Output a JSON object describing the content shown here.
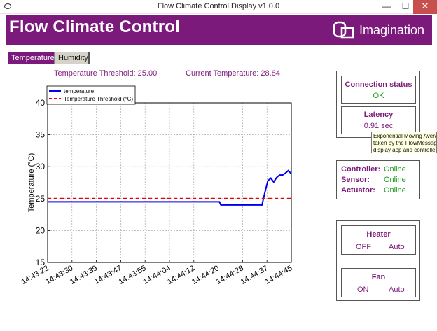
{
  "window": {
    "title": "Flow Climate Control Display v1.0.0",
    "minimize": "—",
    "maximize": "☐",
    "close": "✕"
  },
  "banner": {
    "heading": "Flow Climate Control",
    "logo_text": "Imagination",
    "color": "#7c1a7b"
  },
  "tabs": [
    {
      "label": "Temperature",
      "active": true
    },
    {
      "label": "Humidity",
      "active": false
    }
  ],
  "readouts": {
    "threshold_label": "Temperature Threshold:",
    "threshold_value": "25.00",
    "current_label": "Current Temperature:",
    "current_value": "28.84"
  },
  "connection": {
    "title": "Connection status",
    "value": "OK"
  },
  "latency": {
    "title": "Latency",
    "value": "0.91 sec",
    "tooltip_lines": [
      "Exponential Moving Avera",
      "taken by the FlowMessag",
      "display app and controller"
    ]
  },
  "devices": [
    {
      "label": "Controller:",
      "status": "Online"
    },
    {
      "label": "Sensor:",
      "status": "Online"
    },
    {
      "label": "Actuator:",
      "status": "Online"
    }
  ],
  "heater": {
    "title": "Heater",
    "state": "OFF",
    "mode": "Auto"
  },
  "fan": {
    "title": "Fan",
    "state": "ON",
    "mode": "Auto"
  },
  "chart_data": {
    "type": "line",
    "xlabel": "",
    "ylabel": "Temperature (°C)",
    "ylim": [
      15,
      40
    ],
    "yticks": [
      "15",
      "20",
      "25",
      "30",
      "35",
      "40"
    ],
    "xticks": [
      "14:43:22",
      "14:43:30",
      "14:43:39",
      "14:43:47",
      "14:43:55",
      "14:44:04",
      "14:44:12",
      "14:44:20",
      "14:44:28",
      "14:44:37",
      "14:44:45"
    ],
    "xlim": [
      0,
      83
    ],
    "grid": true,
    "legend": "top-left",
    "series": [
      {
        "name": "temperature",
        "color": "#0000ee",
        "style": "solid",
        "x": [
          0,
          58.5,
          59,
          73,
          74,
          75,
          76,
          77,
          78,
          79,
          80,
          81,
          82,
          83
        ],
        "y": [
          24.5,
          24.5,
          24.0,
          24.0,
          26.0,
          27.8,
          28.2,
          27.6,
          28.3,
          28.7,
          28.7,
          29.0,
          29.4,
          28.84
        ]
      },
      {
        "name": "Temperature Threshold (°C)",
        "color": "#ee0000",
        "style": "dashed",
        "x": [
          0,
          83
        ],
        "y": [
          25.0,
          25.0
        ]
      }
    ]
  }
}
